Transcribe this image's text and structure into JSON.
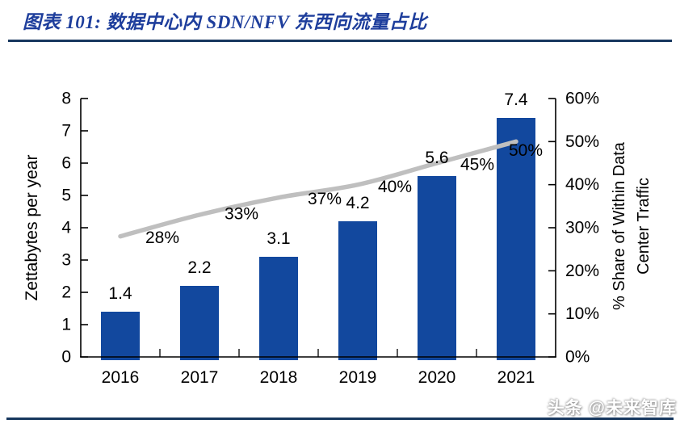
{
  "header": {
    "title": "图表 101:  数据中心内 SDN/NFV 东西向流量占比"
  },
  "footer": {
    "watermark": "头条 @未来智库"
  },
  "colors": {
    "bar": "#12489e",
    "line": "#bfbfbf",
    "axis": "#000000",
    "title_text": "#1e3e9c",
    "rule": "#17375e",
    "label_text": "#000000"
  },
  "chart_data": {
    "type": "bar",
    "subtype": "bar+line combo, dual axis",
    "categories": [
      "2016",
      "2017",
      "2018",
      "2019",
      "2020",
      "2021"
    ],
    "series": [
      {
        "name": "Zettabytes per year",
        "type": "bar",
        "axis": "left",
        "values": [
          1.4,
          2.2,
          3.1,
          4.2,
          5.6,
          7.4
        ],
        "color": "#12489e"
      },
      {
        "name": "% Share of Within Data Center Traffic",
        "type": "line",
        "axis": "right",
        "values": [
          28,
          33,
          37,
          40,
          45,
          50
        ],
        "unit": "%",
        "color": "#bfbfbf"
      }
    ],
    "bar_labels": [
      "1.4",
      "2.2",
      "3.1",
      "4.2",
      "5.6",
      "7.4"
    ],
    "line_labels": [
      "28%",
      "33%",
      "37%",
      "40%",
      "45%",
      "50%"
    ],
    "left_axis": {
      "label": "Zettabytes per year",
      "min": 0,
      "max": 8,
      "step": 1,
      "ticks": [
        "0",
        "1",
        "2",
        "3",
        "4",
        "5",
        "6",
        "7",
        "8"
      ]
    },
    "right_axis": {
      "label_line1": "% Share of Within Data",
      "label_line2": "Center Traffic",
      "min": 0,
      "max": 60,
      "step": 10,
      "ticks": [
        "0%",
        "10%",
        "20%",
        "30%",
        "40%",
        "50%",
        "60%"
      ]
    },
    "grid": false,
    "legend": "none",
    "title": "数据中心内 SDN/NFV 东西向流量占比"
  }
}
